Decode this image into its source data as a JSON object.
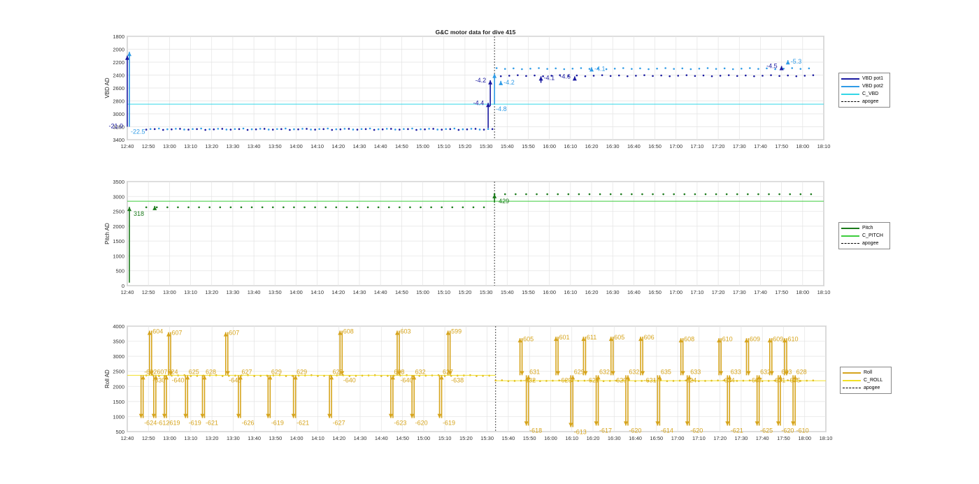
{
  "figure_title": "G&C motor data for dive 415",
  "time_ticks": [
    "12:40",
    "12:50",
    "13:00",
    "13:10",
    "13:20",
    "13:30",
    "13:40",
    "13:50",
    "14:00",
    "14:10",
    "14:20",
    "14:30",
    "14:40",
    "14:50",
    "15:00",
    "15:10",
    "15:20",
    "15:30",
    "15:40",
    "15:50",
    "16:00",
    "16:10",
    "16:20",
    "16:30",
    "16:40",
    "16:50",
    "17:00",
    "17:10",
    "17:20",
    "17:30",
    "17:40",
    "17:50",
    "18:00",
    "18:10"
  ],
  "chart_data": [
    {
      "type": "scatter",
      "ylabel": "VBD AD",
      "ylim": [
        1800,
        3400
      ],
      "y_reversed": true,
      "yticks": [
        1800,
        2000,
        2200,
        2400,
        2600,
        2800,
        3000,
        3200,
        3400
      ],
      "xlim": [
        "12:40",
        "18:10"
      ],
      "apogee": "15:34",
      "grid": true,
      "legend": [
        "VBD pot1",
        "VBD pot2",
        "C_VBD",
        "apogee"
      ],
      "legend_position": "right",
      "series": [
        {
          "name": "VBD pot1",
          "color": "#1a1aa0",
          "y_before": 3240,
          "y_after": 2410
        },
        {
          "name": "VBD pot2",
          "color": "#2f9be6",
          "y_before": 3235,
          "y_after": 2300
        },
        {
          "name": "C_VBD",
          "color": "#33d6e6",
          "constant": 2850
        }
      ],
      "arrows": [
        {
          "x": "12:40",
          "from": 3200,
          "to": 2100,
          "color": "#1a1aa0",
          "label": "-21.0",
          "label_side": "left"
        },
        {
          "x": "12:41",
          "from": 3200,
          "to": 2040,
          "color": "#2f9be6",
          "label": "-22.5",
          "label_side": "below"
        },
        {
          "x": "15:31",
          "from": 3220,
          "to": 2830,
          "color": "#1a1aa0",
          "label": "-4.4",
          "label_side": "left"
        },
        {
          "x": "15:32",
          "from": 2880,
          "to": 2480,
          "color": "#1a1aa0",
          "label": "-4.2",
          "label_side": "left"
        },
        {
          "x": "15:34",
          "from": 2850,
          "to": 2380,
          "color": "#2f9be6",
          "label": "-4.8",
          "label_side": "below"
        },
        {
          "x": "15:37",
          "from": 2530,
          "to": 2490,
          "color": "#2f9be6",
          "label": "-4.2",
          "label_side": "right"
        },
        {
          "x": "15:56",
          "from": 2520,
          "to": 2420,
          "color": "#1a1aa0",
          "label": "-4.1",
          "label_side": "right"
        },
        {
          "x": "16:12",
          "from": 2460,
          "to": 2420,
          "color": "#1a1aa0",
          "label": "-4.6",
          "label_side": "left"
        },
        {
          "x": "16:20",
          "from": 2320,
          "to": 2280,
          "color": "#2f9be6",
          "label": "-4.1",
          "label_side": "right"
        },
        {
          "x": "17:50",
          "from": 2300,
          "to": 2260,
          "color": "#1a1aa0",
          "label": "-4.5",
          "label_side": "left"
        },
        {
          "x": "17:53",
          "from": 2230,
          "to": 2170,
          "color": "#2f9be6",
          "label": "-5.3",
          "label_side": "right"
        }
      ]
    },
    {
      "type": "scatter",
      "ylabel": "Pitch AD",
      "ylim": [
        0,
        3500
      ],
      "yticks": [
        0,
        500,
        1000,
        1500,
        2000,
        2500,
        3000,
        3500
      ],
      "xlim": [
        "12:40",
        "18:10"
      ],
      "apogee": "15:34",
      "grid": true,
      "legend": [
        "Pitch",
        "C_PITCH",
        "apogee"
      ],
      "legend_position": "right",
      "series": [
        {
          "name": "Pitch",
          "color": "#1b7a1b",
          "y_before": 2630,
          "y_after": 3070
        },
        {
          "name": "C_PITCH",
          "color": "#3ccc3c",
          "constant": 2840
        }
      ],
      "arrows": [
        {
          "x": "12:41",
          "from": 100,
          "to": 2650,
          "color": "#1b7a1b",
          "label": "318",
          "label_side": "below-right"
        },
        {
          "x": "12:53",
          "from": 2640,
          "to": 2680,
          "color": "#1b7a1b",
          "label": "",
          "label_side": "none"
        },
        {
          "x": "15:34",
          "from": 2790,
          "to": 3080,
          "color": "#1b7a1b",
          "label": "429",
          "label_side": "below-right"
        }
      ]
    },
    {
      "type": "scatter",
      "ylabel": "Roll AD",
      "ylim": [
        500,
        4000
      ],
      "yticks": [
        500,
        1000,
        1500,
        2000,
        2500,
        3000,
        3500,
        4000
      ],
      "xlim": [
        "12:40",
        "18:10"
      ],
      "apogee": "15:34",
      "grid": true,
      "legend": [
        "Roll",
        "C_ROLL",
        "apogee"
      ],
      "legend_position": "right",
      "series": [
        {
          "name": "Roll",
          "color": "#d6a41c",
          "y_before": 2360,
          "y_after": 2190
        },
        {
          "name": "C_ROLL",
          "color": "#f2e024",
          "before": 2370,
          "after": 2190
        }
      ],
      "spikes": [
        {
          "x": "12:47",
          "peak": 950,
          "up": "-624",
          "down": "-622"
        },
        {
          "x": "12:51",
          "peak": 3850,
          "up": "604",
          "down": "-630"
        },
        {
          "x": "12:53",
          "peak": 950,
          "up": "-612",
          "down": "607"
        },
        {
          "x": "12:58",
          "peak": 950,
          "up": "-619",
          "down": "624"
        },
        {
          "x": "13:00",
          "peak": 3800,
          "up": "607",
          "down": "-640"
        },
        {
          "x": "13:08",
          "peak": 950,
          "up": "-619",
          "down": "625"
        },
        {
          "x": "13:16",
          "peak": 950,
          "up": "-621",
          "down": "628"
        },
        {
          "x": "13:27",
          "peak": 3800,
          "up": "607",
          "down": "-645"
        },
        {
          "x": "13:33",
          "peak": 950,
          "up": "-626",
          "down": "627"
        },
        {
          "x": "13:47",
          "peak": 950,
          "up": "-619",
          "down": "629"
        },
        {
          "x": "13:59",
          "peak": 950,
          "up": "-621",
          "down": "629"
        },
        {
          "x": "14:16",
          "peak": 950,
          "up": "-627",
          "down": "627"
        },
        {
          "x": "14:21",
          "peak": 3850,
          "up": "608",
          "down": "-640"
        },
        {
          "x": "14:45",
          "peak": 950,
          "up": "-623",
          "down": "628"
        },
        {
          "x": "14:48",
          "peak": 3850,
          "up": "603",
          "down": "-640"
        },
        {
          "x": "14:55",
          "peak": 950,
          "up": "-620",
          "down": "632"
        },
        {
          "x": "15:08",
          "peak": 950,
          "up": "-619",
          "down": "627"
        },
        {
          "x": "15:12",
          "peak": 3850,
          "up": "599",
          "down": "-638"
        },
        {
          "x": "15:46",
          "peak": 3600,
          "up": "605",
          "down": "-632"
        },
        {
          "x": "15:49",
          "peak": 700,
          "up": "-618",
          "down": "631"
        },
        {
          "x": "16:03",
          "peak": 3650,
          "up": "601",
          "down": "-629"
        },
        {
          "x": "16:10",
          "peak": 650,
          "up": "-613",
          "down": "629"
        },
        {
          "x": "16:16",
          "peak": 3650,
          "up": "611",
          "down": "-621"
        },
        {
          "x": "16:22",
          "peak": 700,
          "up": "-617",
          "down": "632"
        },
        {
          "x": "16:29",
          "peak": 3650,
          "up": "605",
          "down": "-629"
        },
        {
          "x": "16:36",
          "peak": 700,
          "up": "-620",
          "down": "632"
        },
        {
          "x": "16:43",
          "peak": 3650,
          "up": "606",
          "down": "-631"
        },
        {
          "x": "16:51",
          "peak": 700,
          "up": "-614",
          "down": "635"
        },
        {
          "x": "17:02",
          "peak": 3600,
          "up": "608",
          "down": "-624"
        },
        {
          "x": "17:05",
          "peak": 700,
          "up": "-620",
          "down": "633"
        },
        {
          "x": "17:20",
          "peak": 3600,
          "up": "610",
          "down": "-634"
        },
        {
          "x": "17:24",
          "peak": 700,
          "up": "-621",
          "down": "633"
        },
        {
          "x": "17:33",
          "peak": 3600,
          "up": "609",
          "down": "-637"
        },
        {
          "x": "17:38",
          "peak": 700,
          "up": "-625",
          "down": "632"
        },
        {
          "x": "17:44",
          "peak": 3600,
          "up": "609",
          "down": "-631"
        },
        {
          "x": "17:48",
          "peak": 700,
          "up": "-620",
          "down": "633"
        },
        {
          "x": "17:51",
          "peak": 3600,
          "up": "610",
          "down": "-635"
        },
        {
          "x": "17:55",
          "peak": 700,
          "up": "-610",
          "down": "628"
        }
      ]
    }
  ]
}
